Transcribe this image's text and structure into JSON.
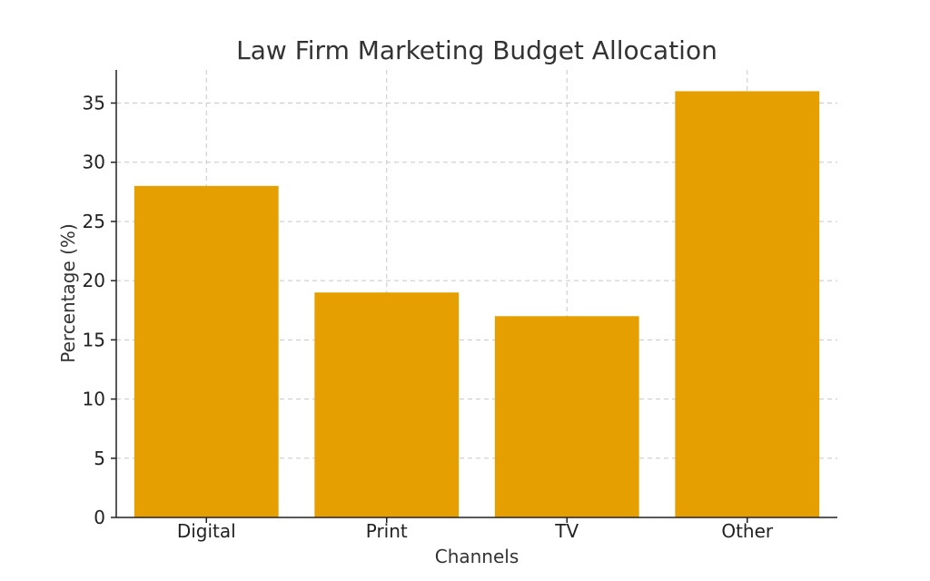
{
  "chart_data": {
    "type": "bar",
    "title": "Law Firm Marketing Budget Allocation",
    "xlabel": "Channels",
    "ylabel": "Percentage (%)",
    "categories": [
      "Digital",
      "Print",
      "TV",
      "Other"
    ],
    "values": [
      28,
      19,
      17,
      36
    ],
    "ylim": [
      0,
      37.8
    ],
    "yticks": [
      0,
      5,
      10,
      15,
      20,
      25,
      30,
      35
    ],
    "grid": true,
    "bar_color": "#e69f00"
  }
}
